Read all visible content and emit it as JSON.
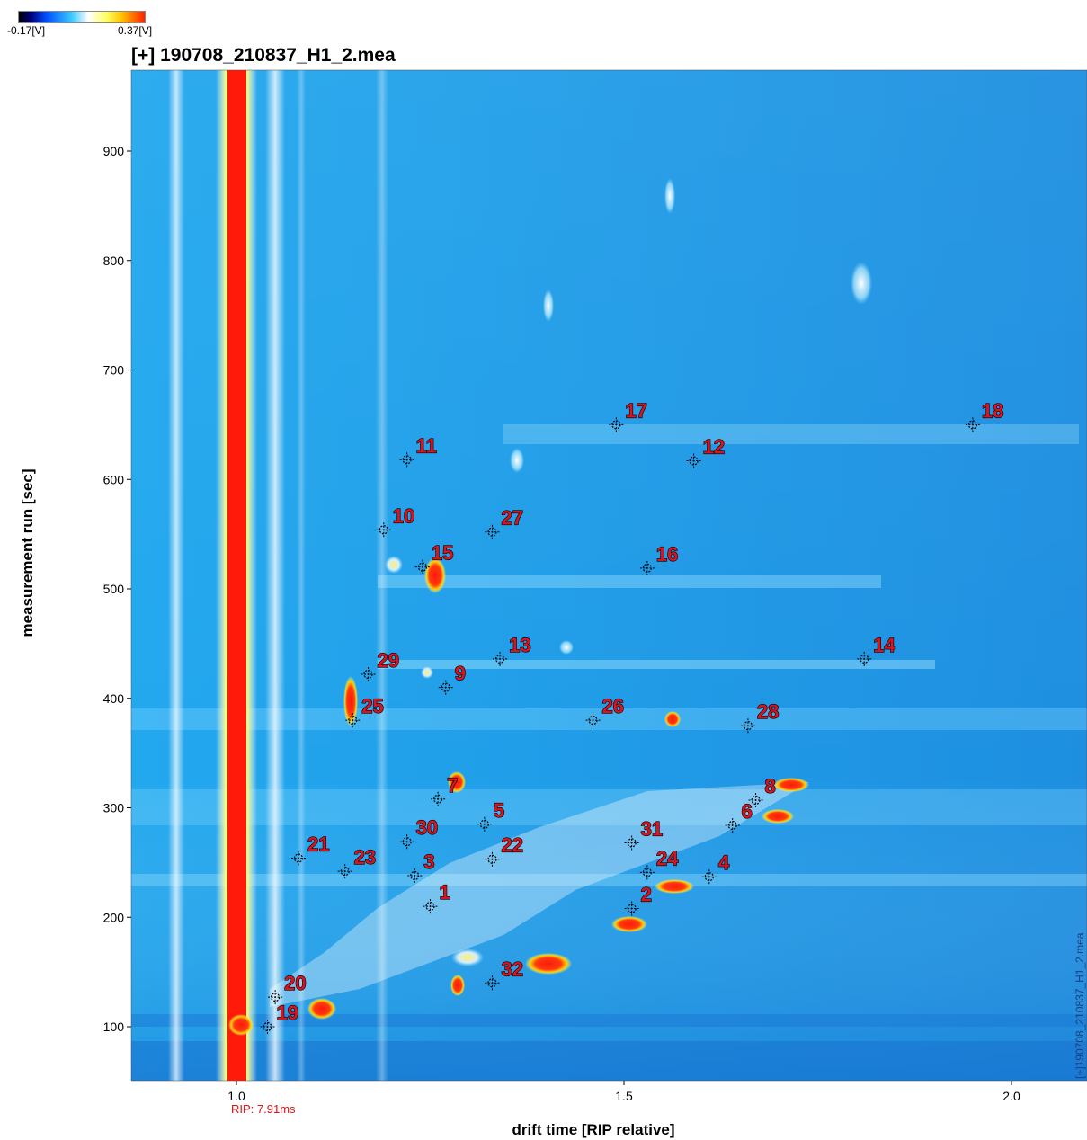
{
  "colorbar": {
    "min_label": "-0.17[V]",
    "max_label": "0.37[V]"
  },
  "file_title": "[+] 190708_210837_H1_2.mea",
  "side_label": "[+]190708_210837_H1_2.mea",
  "chart_data": {
    "type": "heatmap",
    "title": "[+] 190708_210837_H1_2.mea",
    "xlabel": "drift time [RIP relative]",
    "ylabel": "measurement run [sec]",
    "xlim": [
      0.87,
      2.09
    ],
    "ylim": [
      50,
      975
    ],
    "x_ticks": [
      1.0,
      1.5,
      2.0
    ],
    "x_tick_labels": [
      "1.0",
      "1.5",
      "2.0"
    ],
    "y_ticks": [
      100,
      200,
      300,
      400,
      500,
      600,
      700,
      800,
      900
    ],
    "y_tick_labels": [
      "100",
      "200",
      "300",
      "400",
      "500",
      "600",
      "700",
      "800",
      "900"
    ],
    "rip_annotation": "RIP: 7.91ms",
    "colors": {
      "background": "#1e9ee8",
      "rip": "#ff1a0a",
      "peak_label": "#d8141e"
    },
    "markers": [
      {
        "label": "1",
        "x": 1.25,
        "y": 210
      },
      {
        "label": "2",
        "x": 1.51,
        "y": 208
      },
      {
        "label": "3",
        "x": 1.23,
        "y": 238
      },
      {
        "label": "4",
        "x": 1.61,
        "y": 237
      },
      {
        "label": "5",
        "x": 1.32,
        "y": 285
      },
      {
        "label": "6",
        "x": 1.64,
        "y": 284
      },
      {
        "label": "7",
        "x": 1.26,
        "y": 308
      },
      {
        "label": "8",
        "x": 1.67,
        "y": 307
      },
      {
        "label": "9",
        "x": 1.27,
        "y": 410
      },
      {
        "label": "10",
        "x": 1.19,
        "y": 554
      },
      {
        "label": "11",
        "x": 1.22,
        "y": 618
      },
      {
        "label": "12",
        "x": 1.59,
        "y": 617
      },
      {
        "label": "13",
        "x": 1.34,
        "y": 436
      },
      {
        "label": "14",
        "x": 1.81,
        "y": 436
      },
      {
        "label": "15",
        "x": 1.24,
        "y": 520
      },
      {
        "label": "16",
        "x": 1.53,
        "y": 519
      },
      {
        "label": "17",
        "x": 1.49,
        "y": 650
      },
      {
        "label": "18",
        "x": 1.95,
        "y": 650
      },
      {
        "label": "19",
        "x": 1.04,
        "y": 100
      },
      {
        "label": "20",
        "x": 1.05,
        "y": 127
      },
      {
        "label": "21",
        "x": 1.08,
        "y": 254
      },
      {
        "label": "22",
        "x": 1.33,
        "y": 253
      },
      {
        "label": "23",
        "x": 1.14,
        "y": 242
      },
      {
        "label": "24",
        "x": 1.53,
        "y": 241
      },
      {
        "label": "25",
        "x": 1.15,
        "y": 380
      },
      {
        "label": "26",
        "x": 1.46,
        "y": 380
      },
      {
        "label": "27",
        "x": 1.33,
        "y": 552
      },
      {
        "label": "28",
        "x": 1.66,
        "y": 375
      },
      {
        "label": "29",
        "x": 1.17,
        "y": 422
      },
      {
        "label": "30",
        "x": 1.22,
        "y": 269
      },
      {
        "label": "31",
        "x": 1.51,
        "y": 268
      },
      {
        "label": "32",
        "x": 1.33,
        "y": 140
      }
    ]
  }
}
